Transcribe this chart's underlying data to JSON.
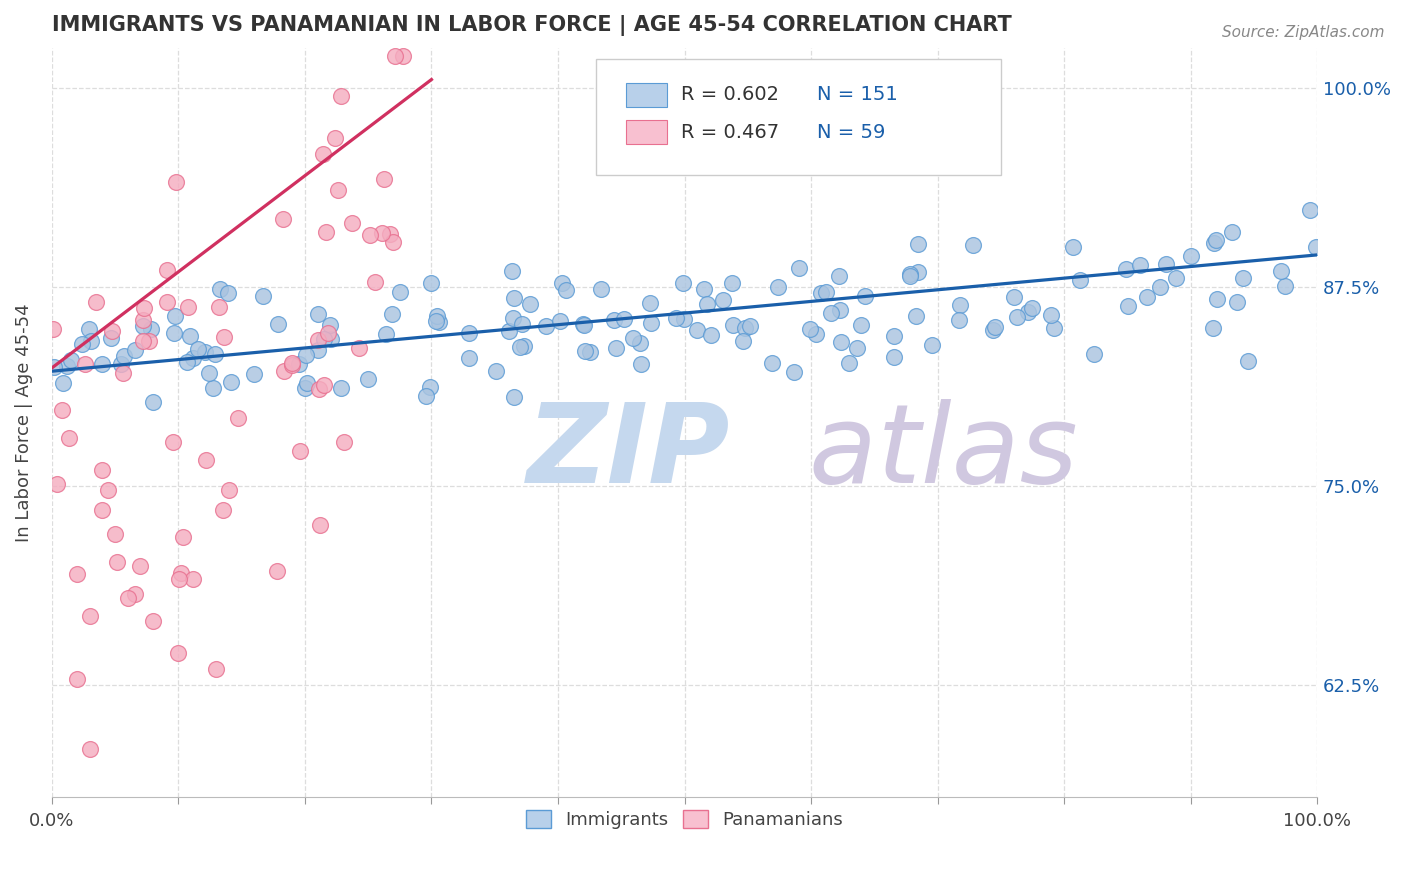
{
  "title": "IMMIGRANTS VS PANAMANIAN IN LABOR FORCE | AGE 45-54 CORRELATION CHART",
  "source_text": "Source: ZipAtlas.com",
  "ylabel": "In Labor Force | Age 45-54",
  "x_min": 0.0,
  "x_max": 1.0,
  "y_min": 0.555,
  "y_max": 1.025,
  "x_ticks": [
    0.0,
    0.1,
    0.2,
    0.3,
    0.4,
    0.5,
    0.6,
    0.7,
    0.8,
    0.9,
    1.0
  ],
  "y_ticks": [
    0.625,
    0.75,
    0.875,
    1.0
  ],
  "y_tick_labels": [
    "62.5%",
    "75.0%",
    "87.5%",
    "100.0%"
  ],
  "blue_R": 0.602,
  "blue_N": 151,
  "pink_R": 0.467,
  "pink_N": 59,
  "blue_color": "#aac4e0",
  "blue_edge": "#5b9bd5",
  "pink_color": "#f4adc0",
  "pink_edge": "#e87090",
  "blue_line_color": "#1a5faa",
  "pink_line_color": "#d03060",
  "legend_blue_face": "#b8d0ea",
  "legend_pink_face": "#f8c0d0",
  "title_color": "#333333",
  "source_color": "#888888",
  "watermark_zip_color": "#c5d8ee",
  "watermark_atlas_color": "#d0c8e0",
  "grid_color": "#dddddd",
  "background_color": "#ffffff",
  "blue_line_start_x": 0.0,
  "blue_line_end_x": 1.0,
  "blue_line_start_y": 0.822,
  "blue_line_end_y": 0.895,
  "pink_line_start_x": 0.0,
  "pink_line_start_y": 0.824,
  "pink_line_end_x": 0.3,
  "pink_line_end_y": 1.005
}
